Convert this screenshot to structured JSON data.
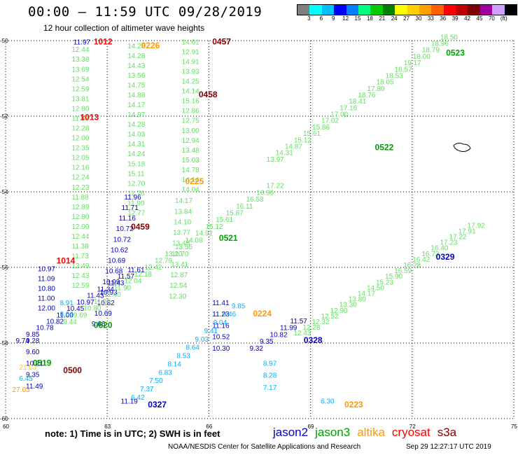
{
  "header": {
    "title": "00:00 – 11:59 UTC 09/28/2019",
    "subtitle": "12 hour collection of altimeter wave heights"
  },
  "colorbar": {
    "colors": [
      "#7f7f7f",
      "#00ffff",
      "#00bfff",
      "#0000ff",
      "#0080ff",
      "#00ff80",
      "#00cc00",
      "#008000",
      "#ffff00",
      "#ffd000",
      "#ffa000",
      "#ff6000",
      "#ff0000",
      "#c00000",
      "#800000",
      "#a000a0",
      "#d0a0ff",
      "#000000"
    ],
    "ticks": [
      "3",
      "6",
      "9",
      "12",
      "15",
      "18",
      "21",
      "24",
      "27",
      "30",
      "33",
      "36",
      "39",
      "42",
      "45",
      "70",
      "(ft)"
    ]
  },
  "axes": {
    "y_ticks": [
      "-50",
      "-52",
      "-54",
      "-56",
      "-58",
      "-60"
    ],
    "x_ticks": [
      "60",
      "63",
      "66",
      "69",
      "72",
      "75"
    ]
  },
  "palette": {
    "j2": "#0000c0",
    "j3l": "#60e060",
    "j3d": "#00a000",
    "alt": "#ff9900",
    "cry": "#ff0000",
    "s3a": "#800000",
    "cyan": "#00b0ff",
    "yel": "#ffcc00"
  },
  "tracks": [
    {
      "name": "jason2-west-col",
      "color": "j2",
      "x": [
        62
      ],
      "y": [
        -50.1
      ],
      "dx": [
        0
      ],
      "dy": [
        0
      ],
      "values": [
        "11.97"
      ]
    },
    {
      "name": "jason3-west-col",
      "color": "j3l",
      "x": [
        61.95
      ],
      "y": [
        -50.3
      ],
      "dx": [
        0
      ],
      "dy": [
        0.26
      ],
      "values": [
        "12.44",
        "13.38",
        "13.69",
        "12.54",
        "12.59",
        "13.81",
        "12.80",
        "11.96",
        "12.28",
        "12.00",
        "12.35",
        "12.05",
        "12.16",
        "12.24",
        "12.23",
        "11.88",
        "12.89",
        "12.80",
        "12.00",
        "12.44",
        "11.38",
        "11.73",
        "12.49",
        "12.43",
        "12.59"
      ]
    },
    {
      "name": "west-col-lower",
      "color": "j2",
      "x": [
        60.95
      ],
      "y": [
        -56.1
      ],
      "dx": [
        0
      ],
      "dy": [
        0.26
      ],
      "values": [
        "10.97",
        "11.09",
        "10.80",
        "11.00",
        "12.00"
      ]
    },
    {
      "name": "s3a-west-col2",
      "color": "j3l",
      "x": [
        63.6
      ],
      "y": [
        -50.2
      ],
      "dx": [
        0
      ],
      "dy": [
        0.26
      ],
      "values": [
        "14.23",
        "14.28",
        "14.43",
        "13.56",
        "14.75",
        "14.88",
        "14.17",
        "14.97",
        "14.28",
        "14.03",
        "14.31",
        "14.24",
        "15.18",
        "15.11",
        "12.70",
        "11.76",
        "11.90",
        "12.77"
      ]
    },
    {
      "name": "mid-col",
      "color": "j3l",
      "x": [
        65.2
      ],
      "y": [
        -50.1
      ],
      "dx": [
        0
      ],
      "dy": [
        0.26
      ],
      "values": [
        "14.01",
        "12.91",
        "14.91",
        "13.93",
        "14.25",
        "14.14",
        "15.16",
        "12.86",
        "12.75",
        "13.00",
        "12.94",
        "13.48",
        "15.03",
        "14.78",
        "14.14",
        "14.04"
      ]
    },
    {
      "name": "mid-col-lower",
      "color": "j3l",
      "x": [
        65.0
      ],
      "y": [
        -54.3
      ],
      "dx": [
        -0.02
      ],
      "dy": [
        0.28
      ],
      "values": [
        "14.17",
        "13.84",
        "14.10",
        "13.77",
        "13.48",
        "11.70",
        "13.41",
        "12.87",
        "12.54",
        "12.30"
      ]
    },
    {
      "name": "j2-down",
      "color": "j2",
      "x": [
        66.1
      ],
      "y": [
        -57.0
      ],
      "dx": [
        -0.0
      ],
      "dy": [
        0.3
      ],
      "values": [
        "11.41",
        "11.23",
        "11.16",
        "10.52",
        "10.30"
      ]
    },
    {
      "name": "j2-diag-a",
      "color": "j2",
      "x": [
        63.5
      ],
      "y": [
        -54.2
      ],
      "dx": [
        -0.08
      ],
      "dy": [
        0.28
      ],
      "values": [
        "11.96",
        "11.71",
        "11.16",
        "10.72",
        "10.72",
        "10.62",
        "10.69",
        "10.68",
        "10.99",
        "10.93",
        "10.82",
        "10.69",
        "9.66"
      ]
    },
    {
      "name": "j3-diag-rise",
      "color": "j3l",
      "x": [
        61.7
      ],
      "y": [
        -57.5
      ],
      "dx": [
        0.3
      ],
      "dy": [
        -0.18
      ],
      "values": [
        "9.44",
        "9.69",
        "10.80",
        "11.00",
        "11.40",
        "11.90",
        "12.04",
        "12.18",
        "12.42",
        "12.79",
        "13.20",
        "13.55",
        "14.08",
        "14.91",
        "15.12",
        "15.61",
        "15.87",
        "16.11",
        "16.58",
        "16.96",
        "17.22"
      ]
    },
    {
      "name": "j3-diag-top",
      "color": "j3l",
      "x": [
        67.7
      ],
      "y": [
        -53.2
      ],
      "dx": [
        0.27
      ],
      "dy": [
        -0.17
      ],
      "values": [
        "13.97",
        "14.31",
        "14.87",
        "15.12",
        "15.61",
        "15.86",
        "17.02",
        "17.00",
        "17.16",
        "18.41",
        "18.76",
        "17.80",
        "18.05",
        "18.53",
        "18.57",
        "19.17",
        "18.00",
        "18.79",
        "18.96",
        "18.50"
      ]
    },
    {
      "name": "j3-diag-low",
      "color": "j3l",
      "x": [
        68.5
      ],
      "y": [
        -57.8
      ],
      "dx": [
        0.27
      ],
      "dy": [
        -0.15
      ],
      "values": [
        "12.43",
        "12.28",
        "12.32",
        "12.52",
        "12.90",
        "13.30",
        "13.80",
        "14.17",
        "14.50",
        "15.23",
        "15.90",
        "16.59",
        "16.28",
        "16.42",
        "16.73",
        "16.40",
        "17.23",
        "17.22",
        "17.91",
        "17.92"
      ]
    },
    {
      "name": "j2-diag-b",
      "color": "j2",
      "x": [
        60.3
      ],
      "y": [
        -58.0
      ],
      "dx": [
        0.3
      ],
      "dy": [
        -0.17
      ],
      "values": [
        "9.74",
        "9.85",
        "10.78",
        "10.82",
        "11.00",
        "10.45",
        "10.97",
        "11.43",
        "11.34",
        "11.43",
        "11.57",
        "11.61"
      ]
    },
    {
      "name": "cyan-diag",
      "color": "cyan",
      "x": [
        63.7
      ],
      "y": [
        -59.5
      ],
      "dx": [
        0.27
      ],
      "dy": [
        -0.22
      ],
      "values": [
        "6.42",
        "7.37",
        "7.50",
        "6.83",
        "8.14",
        "8.53",
        "8.64",
        "9.03",
        "9.41",
        "9.04",
        "9.46",
        "9.85"
      ]
    },
    {
      "name": "cyan-down",
      "color": "cyan",
      "x": [
        67.6
      ],
      "y": [
        -58.6
      ],
      "dx": [
        0
      ],
      "dy": [
        0.32
      ],
      "values": [
        "8.97",
        "8.28",
        "7.17"
      ]
    },
    {
      "name": "j2-east",
      "color": "j2",
      "x": [
        67.2
      ],
      "y": [
        -58.2
      ],
      "dx": [
        0.3
      ],
      "dy": [
        -0.18
      ],
      "values": [
        "9.32",
        "9.35",
        "10.82",
        "11.99",
        "11.57"
      ]
    },
    {
      "name": "bottom-left",
      "color": "j2",
      "x": [
        60.6
      ],
      "y": [
        -58.0
      ],
      "dx": [
        0
      ],
      "dy": [
        0.3
      ],
      "values": [
        "9.28",
        "9.60",
        "10.21",
        "9.35",
        "11.49"
      ]
    },
    {
      "name": "bottom-left-cyan",
      "color": "cyan",
      "x": [
        61.6
      ],
      "y": [
        -57.0
      ],
      "dx": [
        0
      ],
      "dy": [
        0.3
      ],
      "values": [
        "8.91",
        "8.64"
      ]
    }
  ],
  "extra_labels": [
    {
      "t": "11.19",
      "x": 63.4,
      "y": -59.6,
      "c": "j2"
    },
    {
      "t": "6.30",
      "x": 69.3,
      "y": -59.6,
      "c": "cyan"
    },
    {
      "t": "6.45",
      "x": 60.4,
      "y": -59.0,
      "c": "cyan"
    },
    {
      "t": "21.03",
      "x": 60.4,
      "y": -58.7,
      "c": "yel"
    },
    {
      "t": "27.03",
      "x": 60.2,
      "y": -59.3,
      "c": "alt"
    }
  ],
  "codes": [
    {
      "t": "1012",
      "x": 62.6,
      "y": -50.1,
      "c": "cry"
    },
    {
      "t": "0226",
      "x": 64.0,
      "y": -50.2,
      "c": "alt"
    },
    {
      "t": "0457",
      "x": 66.1,
      "y": -50.1,
      "c": "s3a"
    },
    {
      "t": "0523",
      "x": 73.0,
      "y": -50.4,
      "c": "j3d"
    },
    {
      "t": "0458",
      "x": 65.7,
      "y": -51.5,
      "c": "s3a"
    },
    {
      "t": "1013",
      "x": 62.2,
      "y": -52.1,
      "c": "cry"
    },
    {
      "t": "0522",
      "x": 70.9,
      "y": -52.9,
      "c": "j3d"
    },
    {
      "t": "0225",
      "x": 65.3,
      "y": -53.8,
      "c": "alt"
    },
    {
      "t": "0459",
      "x": 63.7,
      "y": -55.0,
      "c": "s3a"
    },
    {
      "t": "0521",
      "x": 66.3,
      "y": -55.3,
      "c": "j3d"
    },
    {
      "t": "1014",
      "x": 61.5,
      "y": -55.9,
      "c": "cry"
    },
    {
      "t": "0329",
      "x": 72.7,
      "y": -55.8,
      "c": "j2"
    },
    {
      "t": "0224",
      "x": 67.3,
      "y": -57.3,
      "c": "alt"
    },
    {
      "t": "0520",
      "x": 62.6,
      "y": -57.6,
      "c": "j3d"
    },
    {
      "t": "0328",
      "x": 68.8,
      "y": -58.0,
      "c": "j2"
    },
    {
      "t": "0519",
      "x": 60.8,
      "y": -58.6,
      "c": "j3d"
    },
    {
      "t": "0500",
      "x": 61.7,
      "y": -58.8,
      "c": "s3a"
    },
    {
      "t": "0327",
      "x": 64.2,
      "y": -59.7,
      "c": "j2"
    },
    {
      "t": "0223",
      "x": 70.0,
      "y": -59.7,
      "c": "alt"
    }
  ],
  "footer": {
    "note": "note:  1) Time is in UTC;  2) SWH is in feet",
    "legend": [
      {
        "label": "jason2",
        "color": "#0000c0"
      },
      {
        "label": "jason3",
        "color": "#00a000"
      },
      {
        "label": "altika",
        "color": "#ff9900"
      },
      {
        "label": "cryosat",
        "color": "#ff0000"
      },
      {
        "label": "s3a",
        "color": "#800000"
      }
    ],
    "credit": "NOAA/NESDIS Center for Satellite Applications and Research",
    "stamp": "Sep 29 12:27:17 UTC 2019"
  }
}
